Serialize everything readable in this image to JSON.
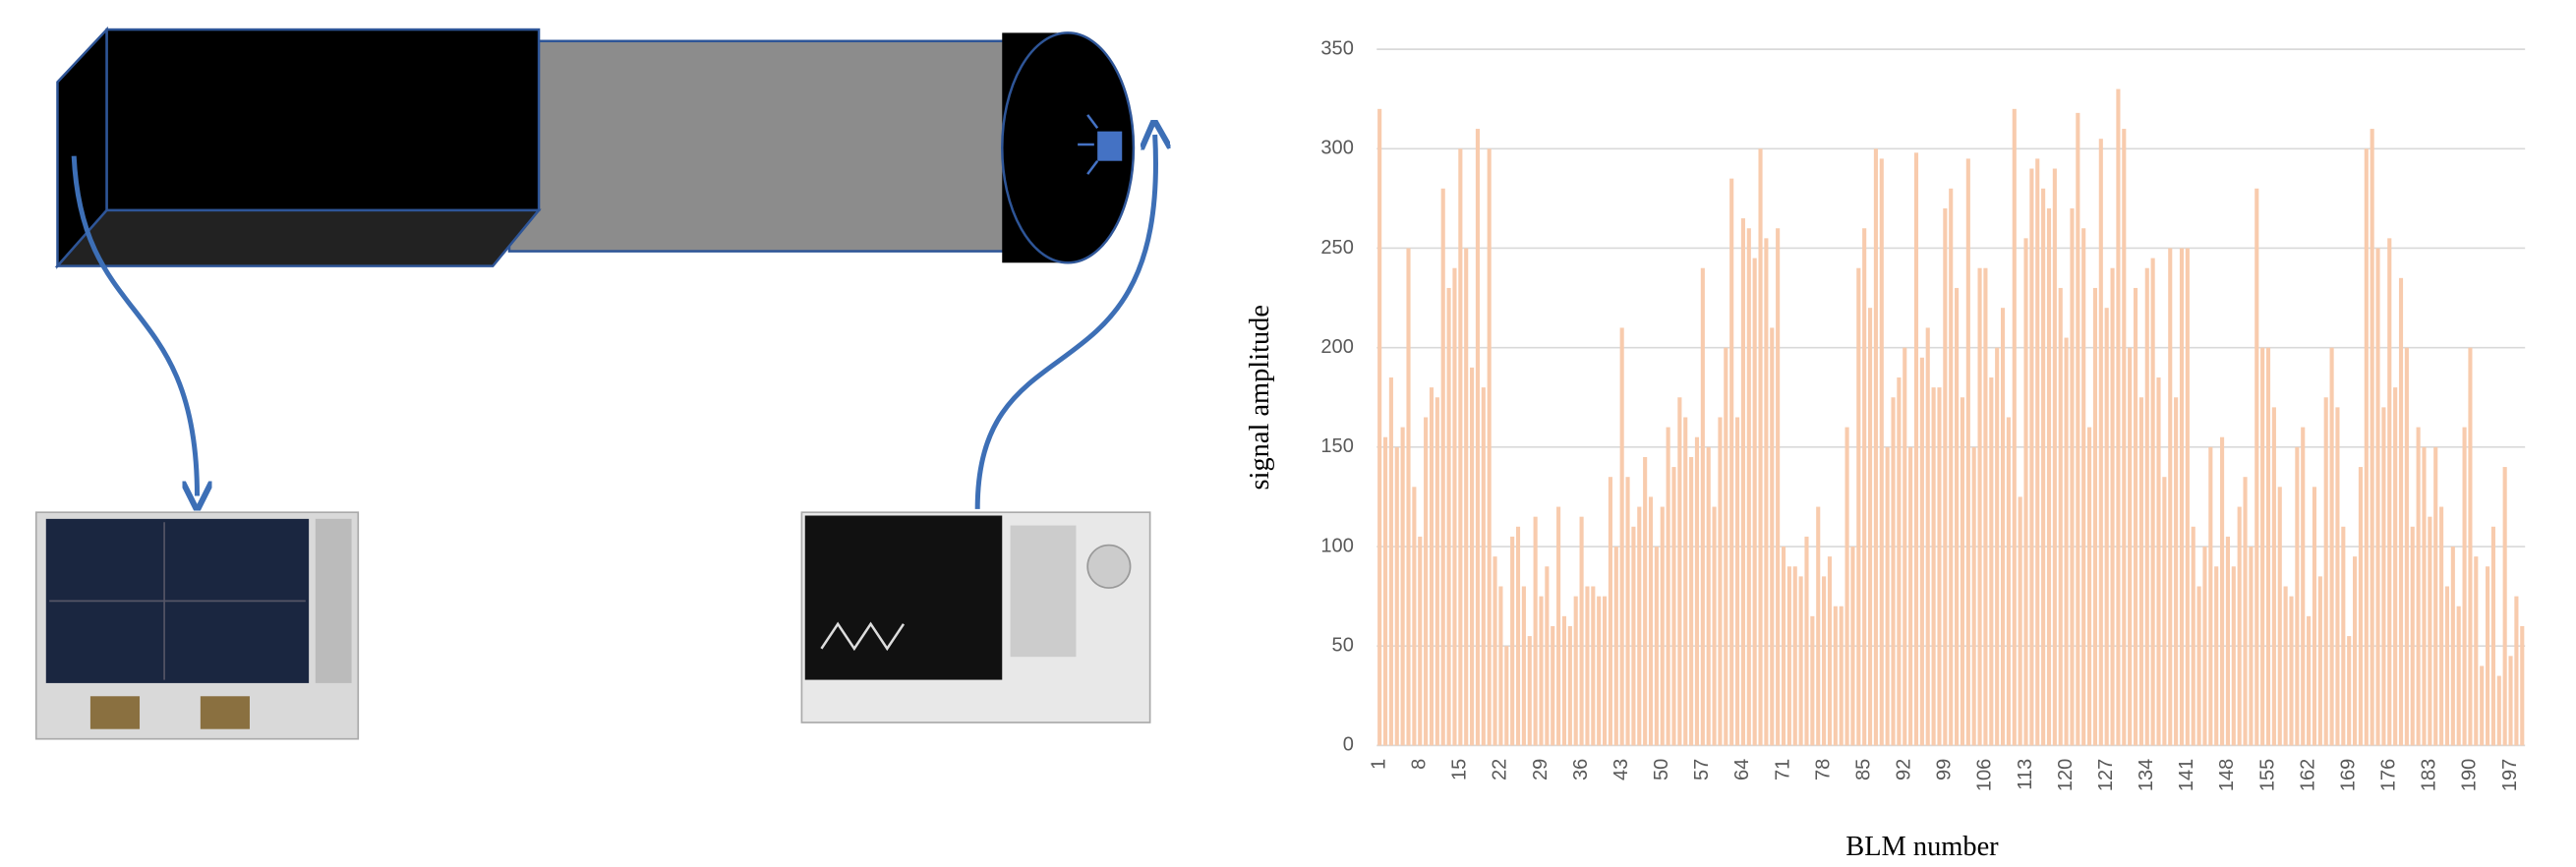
{
  "chart_data": {
    "type": "bar",
    "x_label": "BLM number",
    "y_label": "signal amplitude",
    "categories": [
      "1",
      null,
      null,
      null,
      null,
      null,
      null,
      "8",
      null,
      null,
      null,
      null,
      null,
      null,
      "15",
      null,
      null,
      null,
      null,
      null,
      null,
      "22",
      null,
      null,
      null,
      null,
      null,
      null,
      "29",
      null,
      null,
      null,
      null,
      null,
      null,
      "36",
      null,
      null,
      null,
      null,
      null,
      null,
      "43",
      null,
      null,
      null,
      null,
      null,
      null,
      "50",
      null,
      null,
      null,
      null,
      null,
      null,
      "57",
      null,
      null,
      null,
      null,
      null,
      null,
      "64",
      null,
      null,
      null,
      null,
      null,
      null,
      "71",
      null,
      null,
      null,
      null,
      null,
      null,
      "78",
      null,
      null,
      null,
      null,
      null,
      null,
      "85",
      null,
      null,
      null,
      null,
      null,
      null,
      "92",
      null,
      null,
      null,
      null,
      null,
      null,
      "99",
      null,
      null,
      null,
      null,
      null,
      null,
      "106",
      null,
      null,
      null,
      null,
      null,
      null,
      "113",
      null,
      null,
      null,
      null,
      null,
      null,
      "120",
      null,
      null,
      null,
      null,
      null,
      null,
      "127",
      null,
      null,
      null,
      null,
      null,
      null,
      "134",
      null,
      null,
      null,
      null,
      null,
      null,
      "141",
      null,
      null,
      null,
      null,
      null,
      null,
      "148",
      null,
      null,
      null,
      null,
      null,
      null,
      "155",
      null,
      null,
      null,
      null,
      null,
      null,
      "162",
      null,
      null,
      null,
      null,
      null,
      null,
      "169",
      null,
      null,
      null,
      null,
      null,
      null,
      "176",
      null,
      null,
      null,
      null,
      null,
      null,
      "183",
      null,
      null,
      null,
      null,
      null,
      null,
      "190",
      null,
      null,
      null,
      null,
      null,
      null,
      "197",
      null,
      null
    ],
    "values": [
      320,
      155,
      185,
      150,
      160,
      250,
      130,
      105,
      165,
      180,
      175,
      280,
      230,
      240,
      300,
      250,
      190,
      310,
      180,
      300,
      95,
      80,
      50,
      105,
      110,
      80,
      55,
      115,
      75,
      90,
      60,
      120,
      65,
      60,
      75,
      115,
      80,
      80,
      75,
      75,
      135,
      100,
      210,
      135,
      110,
      120,
      145,
      125,
      100,
      120,
      160,
      140,
      175,
      165,
      145,
      155,
      240,
      150,
      120,
      165,
      200,
      285,
      165,
      265,
      260,
      245,
      300,
      255,
      210,
      260,
      100,
      90,
      90,
      85,
      105,
      65,
      120,
      85,
      95,
      70,
      70,
      160,
      100,
      240,
      260,
      220,
      300,
      295,
      150,
      175,
      185,
      200,
      150,
      298,
      195,
      210,
      180,
      180,
      270,
      280,
      230,
      175,
      295,
      150,
      240,
      240,
      185,
      200,
      220,
      165,
      320,
      125,
      255,
      290,
      295,
      280,
      270,
      290,
      230,
      205,
      270,
      318,
      260,
      160,
      230,
      305,
      220,
      240,
      330,
      310,
      200,
      230,
      175,
      240,
      245,
      185,
      135,
      250,
      175,
      250,
      250,
      110,
      80,
      100,
      150,
      90,
      155,
      105,
      90,
      120,
      135,
      100,
      280,
      200,
      200,
      170,
      130,
      80,
      75,
      150,
      160,
      65,
      130,
      85,
      175,
      200,
      170,
      110,
      55,
      95,
      140,
      300,
      310,
      250,
      170,
      255,
      180,
      235,
      200,
      110,
      160,
      150,
      115,
      150,
      120,
      80,
      100,
      70,
      160,
      200,
      95,
      40,
      90,
      110,
      35,
      140,
      45,
      75,
      60
    ],
    "color": "#f8cbad",
    "ylim": [
      0,
      350
    ],
    "yticks": [
      0,
      50,
      100,
      150,
      200,
      250,
      300,
      350
    ],
    "grid": true
  }
}
